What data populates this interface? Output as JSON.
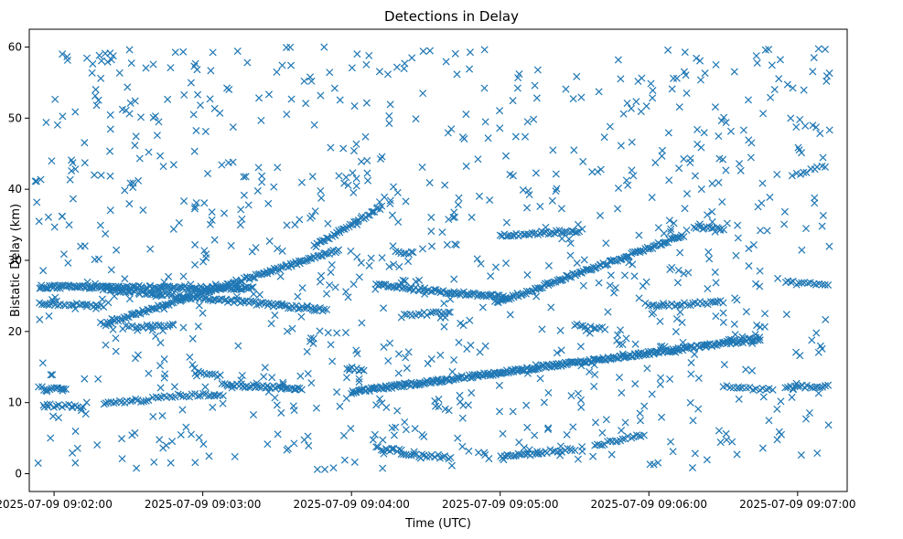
{
  "chart_data": {
    "type": "scatter",
    "title": "Detections in Delay",
    "xlabel": "Time (UTC)",
    "ylabel": "Bistatic Delay (km)",
    "marker": "x",
    "color": "#1f77b4",
    "xlim_seconds": [
      -10,
      320
    ],
    "ylim": [
      -2.5,
      62.5
    ],
    "x_ticks": [
      {
        "t": 0,
        "label": "2025-07-09 09:02:00"
      },
      {
        "t": 60,
        "label": "2025-07-09 09:03:00"
      },
      {
        "t": 120,
        "label": "2025-07-09 09:04:00"
      },
      {
        "t": 180,
        "label": "2025-07-09 09:05:00"
      },
      {
        "t": 240,
        "label": "2025-07-09 09:06:00"
      },
      {
        "t": 300,
        "label": "2025-07-09 09:07:00"
      }
    ],
    "y_ticks": [
      0,
      10,
      20,
      30,
      40,
      50,
      60
    ],
    "x_range_seconds": [
      -8,
      313
    ],
    "tracks": [
      {
        "name": "rising-1",
        "t_start": 20,
        "t_end": 115,
        "y_start": 21.0,
        "y_end": 31.5,
        "count": 140
      },
      {
        "name": "rising-2",
        "t_start": 105,
        "t_end": 132,
        "y_start": 32.0,
        "y_end": 37.5,
        "count": 40
      },
      {
        "name": "rising-3",
        "t_start": 178,
        "t_end": 254,
        "y_start": 24.0,
        "y_end": 33.5,
        "count": 120
      },
      {
        "name": "rising-long",
        "t_start": 120,
        "t_end": 285,
        "y_start": 11.5,
        "y_end": 19.0,
        "count": 300
      },
      {
        "name": "falling-1",
        "t_start": 20,
        "t_end": 110,
        "y_start": 26.0,
        "y_end": 23.0,
        "count": 110
      },
      {
        "name": "falling-2",
        "t_start": 130,
        "t_end": 182,
        "y_start": 26.5,
        "y_end": 24.8,
        "count": 70
      },
      {
        "name": "band-26",
        "t_start": -6,
        "t_end": 80,
        "y_start": 26.3,
        "y_end": 26.1,
        "count": 150
      },
      {
        "name": "band-24",
        "t_start": -6,
        "t_end": 20,
        "y_start": 24.0,
        "y_end": 23.6,
        "count": 25
      },
      {
        "name": "band-12",
        "t_start": -6,
        "t_end": 5,
        "y_start": 12.0,
        "y_end": 11.8,
        "count": 14
      },
      {
        "name": "band-9",
        "t_start": -4,
        "t_end": 12,
        "y_start": 9.6,
        "y_end": 9.4,
        "count": 14
      },
      {
        "name": "band-10",
        "t_start": 20,
        "t_end": 38,
        "y_start": 10.0,
        "y_end": 10.4,
        "count": 18
      },
      {
        "name": "band-11",
        "t_start": 40,
        "t_end": 68,
        "y_start": 10.8,
        "y_end": 11.2,
        "count": 26
      },
      {
        "name": "band-12b",
        "t_start": 68,
        "t_end": 100,
        "y_start": 12.5,
        "y_end": 12.0,
        "count": 40
      },
      {
        "name": "band-14a",
        "t_start": 57,
        "t_end": 67,
        "y_start": 14.2,
        "y_end": 13.8,
        "count": 10
      },
      {
        "name": "band-14b",
        "t_start": 118,
        "t_end": 125,
        "y_start": 14.8,
        "y_end": 14.6,
        "count": 8
      },
      {
        "name": "band-3a",
        "t_start": 130,
        "t_end": 140,
        "y_start": 3.6,
        "y_end": 3.2,
        "count": 12
      },
      {
        "name": "band-2",
        "t_start": 140,
        "t_end": 160,
        "y_start": 2.8,
        "y_end": 2.3,
        "count": 20
      },
      {
        "name": "band-2b",
        "t_start": 180,
        "t_end": 195,
        "y_start": 2.4,
        "y_end": 2.9,
        "count": 18
      },
      {
        "name": "band-3b",
        "t_start": 195,
        "t_end": 210,
        "y_start": 3.0,
        "y_end": 3.4,
        "count": 16
      },
      {
        "name": "band-4",
        "t_start": 218,
        "t_end": 238,
        "y_start": 4.0,
        "y_end": 5.5,
        "count": 20
      },
      {
        "name": "band-33",
        "t_start": 180,
        "t_end": 213,
        "y_start": 33.5,
        "y_end": 34.2,
        "count": 40
      },
      {
        "name": "band-34",
        "t_start": 258,
        "t_end": 270,
        "y_start": 34.6,
        "y_end": 34.4,
        "count": 14
      },
      {
        "name": "band-31",
        "t_start": 138,
        "t_end": 145,
        "y_start": 31.3,
        "y_end": 31.0,
        "count": 8
      },
      {
        "name": "band-21",
        "t_start": 210,
        "t_end": 222,
        "y_start": 20.8,
        "y_end": 20.4,
        "count": 12
      },
      {
        "name": "band-23",
        "t_start": 240,
        "t_end": 270,
        "y_start": 23.5,
        "y_end": 24.2,
        "count": 30
      },
      {
        "name": "band-22",
        "t_start": 140,
        "t_end": 160,
        "y_start": 22.2,
        "y_end": 22.8,
        "count": 18
      },
      {
        "name": "band-12c",
        "t_start": 270,
        "t_end": 290,
        "y_start": 12.2,
        "y_end": 11.8,
        "count": 16
      },
      {
        "name": "band-12d",
        "t_start": 295,
        "t_end": 312,
        "y_start": 12.2,
        "y_end": 12.2,
        "count": 18
      },
      {
        "name": "band-27",
        "t_start": 295,
        "t_end": 312,
        "y_start": 26.9,
        "y_end": 26.5,
        "count": 16
      },
      {
        "name": "band-43",
        "t_start": 298,
        "t_end": 311,
        "y_start": 42.0,
        "y_end": 43.2,
        "count": 10
      },
      {
        "name": "band-20",
        "t_start": 28,
        "t_end": 48,
        "y_start": 20.6,
        "y_end": 20.9,
        "count": 18
      }
    ],
    "noise": {
      "t_range": [
        -8,
        313
      ],
      "y_range": [
        0.5,
        60
      ],
      "count": 950
    }
  }
}
